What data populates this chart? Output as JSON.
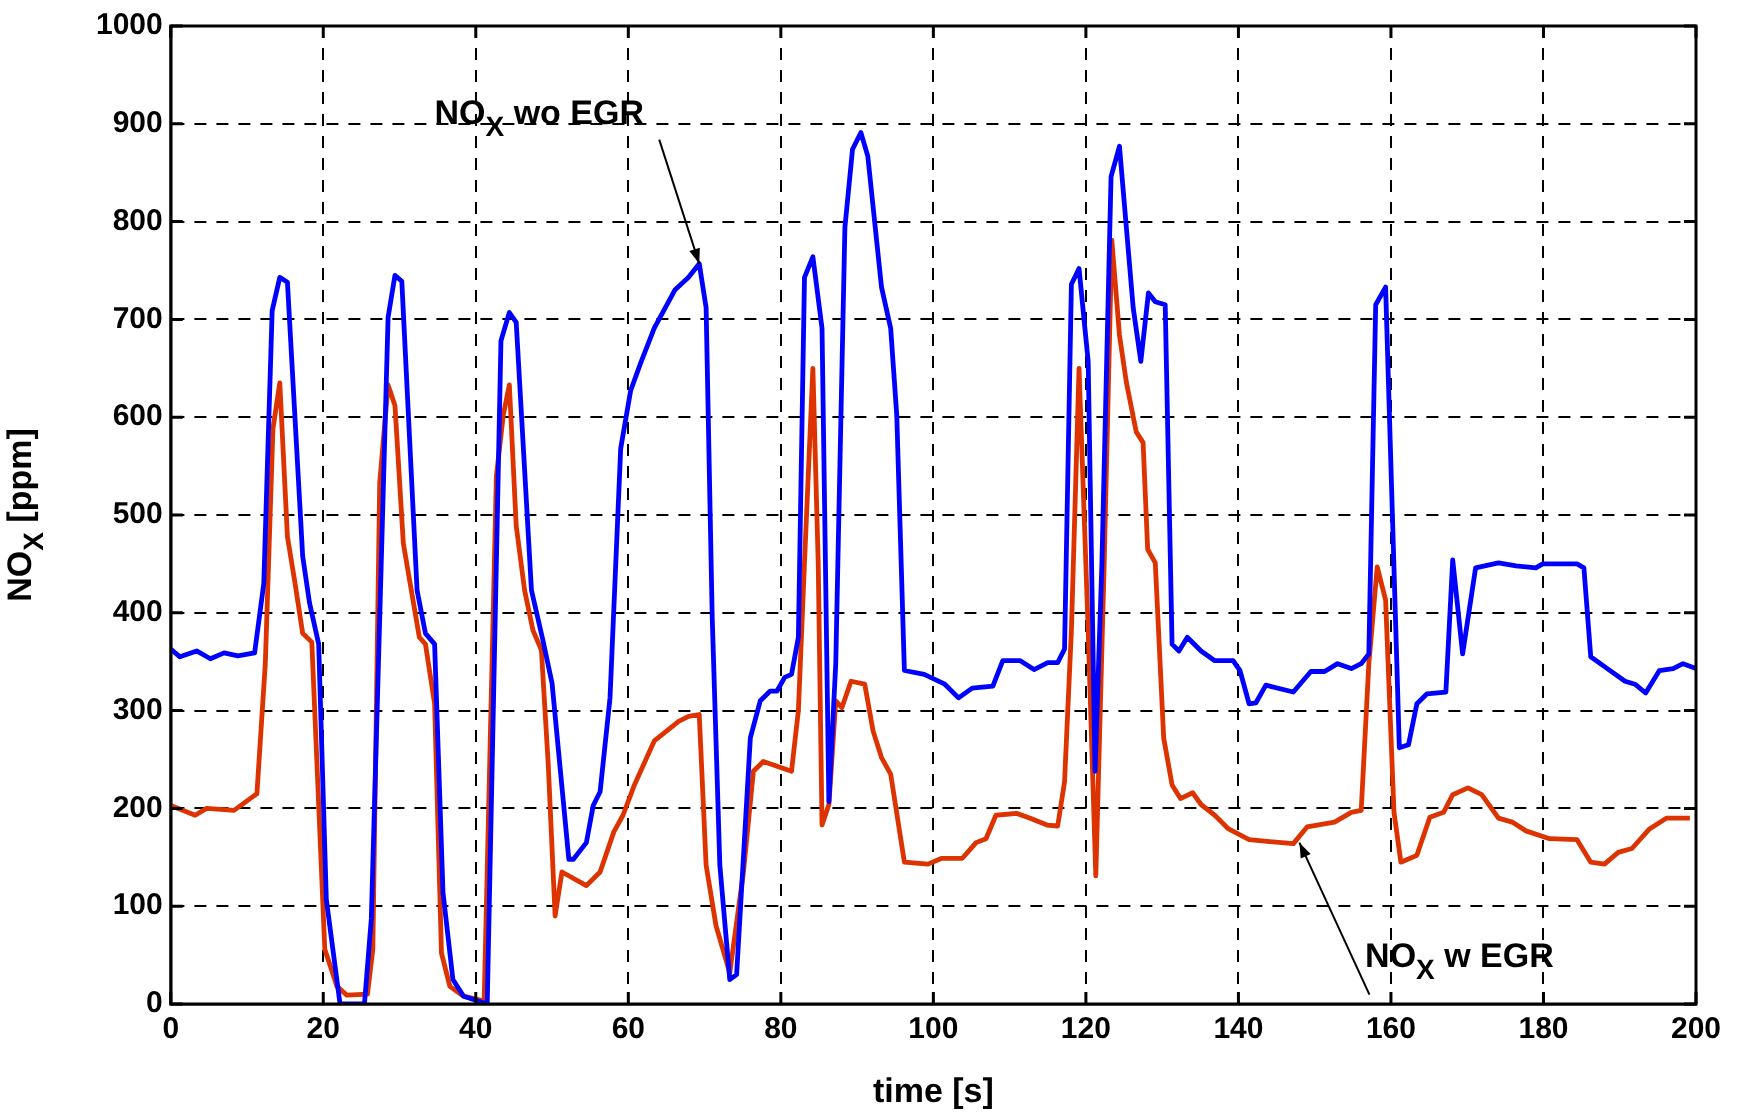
{
  "chart_data": {
    "type": "line",
    "xlabel": "time [s]",
    "ylabel": "NO$_{X}$ [ppm]",
    "xlim": [
      0,
      200
    ],
    "xticks": [
      0,
      20,
      40,
      60,
      80,
      100,
      120,
      140,
      160,
      180,
      200
    ],
    "ylim": [
      0,
      1000
    ],
    "yticks": [
      0,
      100,
      200,
      300,
      400,
      500,
      600,
      700,
      800,
      900,
      1000
    ],
    "grid": true,
    "legend": false,
    "marker": "none",
    "line_style": "solid",
    "annotations": [
      {
        "text": "NO$_{X}$ wo EGR",
        "x": 69.3,
        "y": 757
      },
      {
        "text": "NO$_{X}$ w EGR",
        "x": 148,
        "y": 165
      }
    ],
    "series": [
      {
        "color": "#0000ff",
        "x": [
          0,
          1.2,
          3.4,
          5.2,
          7,
          8.8,
          11,
          12.2,
          13.3,
          14.3,
          15.3,
          17.3,
          18.2,
          19.4,
          20.4,
          22.2,
          25.4,
          26.3,
          28.5,
          29.4,
          30.3,
          32.3,
          33.4,
          34.6,
          35.7,
          37,
          38.4,
          41.5,
          43.3,
          44.4,
          45.3,
          47.3,
          48.8,
          50,
          52.2,
          52.8,
          54.5,
          55.4,
          56.3,
          57.6,
          59,
          60.3,
          61.6,
          63.4,
          66.1,
          67.9,
          69.3,
          70.2,
          71,
          72,
          73.3,
          74.2,
          76,
          77.3,
          78.6,
          79.5,
          80.5,
          81.4,
          82.3,
          83.1,
          84.2,
          85.4,
          86.3,
          87.2,
          88.4,
          89.4,
          90.5,
          91.4,
          93.2,
          94.4,
          95.2,
          96.2,
          98.8,
          101.5,
          103.3,
          105.1,
          107.8,
          109.1,
          111.4,
          113.2,
          115,
          116.3,
          117.2,
          118.1,
          119.1,
          120.3,
          121.2,
          122.1,
          123.3,
          124.4,
          126.2,
          127.2,
          128.2,
          129.1,
          130.4,
          131.3,
          132.2,
          133.3,
          135.1,
          136.9,
          139.3,
          140.2,
          141.4,
          142.3,
          143.6,
          147.2,
          149.5,
          151.3,
          153,
          154.8,
          156.1,
          157.1,
          158,
          159.3,
          161.1,
          162.3,
          163.4,
          164.7,
          167.2,
          168.1,
          169.4,
          171.1,
          174.1,
          176.4,
          179,
          179.9,
          184.4,
          185.3,
          186.2,
          188,
          190.7,
          192,
          193.4,
          195.2,
          197,
          198.3,
          200
        ],
        "values": [
          363,
          355,
          361,
          353,
          359,
          356,
          359,
          430,
          709,
          743,
          738,
          458,
          410,
          368,
          107,
          0,
          0,
          87,
          702,
          745,
          739,
          423,
          379,
          368,
          114,
          25,
          8,
          0,
          678,
          707,
          697,
          423,
          372,
          328,
          148,
          148,
          165,
          203,
          217,
          313,
          568,
          627,
          655,
          691,
          730,
          743,
          757,
          712,
          396,
          142,
          25,
          30,
          272,
          310,
          320,
          320,
          334,
          337,
          375,
          743,
          764,
          691,
          207,
          348,
          794,
          874,
          891,
          867,
          733,
          691,
          602,
          341,
          337,
          327,
          313,
          323,
          325,
          351,
          351,
          342,
          349,
          349,
          363,
          736,
          752,
          657,
          238,
          451,
          846,
          877,
          712,
          657,
          727,
          718,
          715,
          368,
          361,
          375,
          361,
          351,
          351,
          341,
          307,
          308,
          326,
          319,
          340,
          340,
          348,
          343,
          348,
          358,
          715,
          733,
          262,
          265,
          307,
          317,
          319,
          454,
          358,
          446,
          451,
          448,
          446,
          450,
          450,
          446,
          355,
          345,
          330,
          327,
          318,
          341,
          343,
          348,
          343
        ]
      },
      {
        "color": "#dd3300",
        "x": [
          0,
          3.2,
          4.7,
          8.3,
          11.3,
          12.4,
          13.4,
          14.3,
          15.3,
          16.3,
          17.3,
          18.5,
          20.2,
          21.8,
          23.1,
          25.8,
          26.5,
          27.4,
          28.5,
          29.4,
          30.5,
          31.7,
          32.6,
          33.4,
          34.6,
          35.5,
          36.6,
          38.4,
          41.1,
          42.7,
          43.6,
          44.4,
          45.3,
          46.4,
          47.5,
          48.6,
          49.5,
          50.4,
          51.3,
          54.5,
          56.3,
          58.1,
          59.3,
          60.8,
          63.4,
          66.6,
          67.9,
          69.3,
          70.2,
          71.5,
          73.3,
          75.1,
          76.4,
          77.7,
          81.4,
          82.3,
          83.1,
          84.2,
          84.9,
          85.4,
          86.3,
          87.2,
          88,
          89.2,
          91,
          92.1,
          93.2,
          94.4,
          96.2,
          99.3,
          101.1,
          103.8,
          105.6,
          106.9,
          108.2,
          110.9,
          112.7,
          114.9,
          116.3,
          117.2,
          118.1,
          119.1,
          120.3,
          121.3,
          122.4,
          123.4,
          124.4,
          125.3,
          126.6,
          127.5,
          128.1,
          129.1,
          130.2,
          131.3,
          132.4,
          134,
          135.1,
          136.9,
          138.7,
          141.4,
          144.1,
          147.2,
          149,
          152.6,
          154.8,
          156.1,
          157.1,
          158.2,
          159.3,
          160.4,
          161.3,
          163.4,
          165.1,
          166.9,
          168.1,
          170.1,
          171.9,
          174.1,
          175.9,
          177.7,
          180.8,
          184.4,
          186.2,
          188,
          189.8,
          191.6,
          193.9,
          196.1,
          199.2
        ],
        "values": [
          203,
          193,
          200,
          198,
          215,
          348,
          588,
          635,
          478,
          430,
          379,
          370,
          56,
          18,
          9,
          10,
          56,
          533,
          633,
          612,
          471,
          416,
          375,
          368,
          307,
          52,
          18,
          8,
          3,
          540,
          602,
          633,
          489,
          423,
          382,
          362,
          245,
          90,
          135,
          121,
          135,
          176,
          193,
          224,
          269,
          289,
          294,
          296,
          142,
          80,
          32,
          135,
          238,
          248,
          238,
          300,
          451,
          650,
          451,
          183,
          204,
          310,
          303,
          330,
          327,
          279,
          252,
          235,
          145,
          143,
          149,
          149,
          165,
          169,
          193,
          195,
          190,
          183,
          182,
          227,
          382,
          650,
          382,
          131,
          451,
          781,
          684,
          636,
          585,
          574,
          465,
          451,
          272,
          224,
          210,
          216,
          204,
          193,
          179,
          168,
          166,
          164,
          181,
          186,
          196,
          198,
          348,
          447,
          413,
          196,
          145,
          152,
          191,
          196,
          214,
          221,
          214,
          190,
          186,
          177,
          169,
          168,
          145,
          143,
          155,
          159,
          179,
          190,
          190
        ]
      }
    ]
  }
}
